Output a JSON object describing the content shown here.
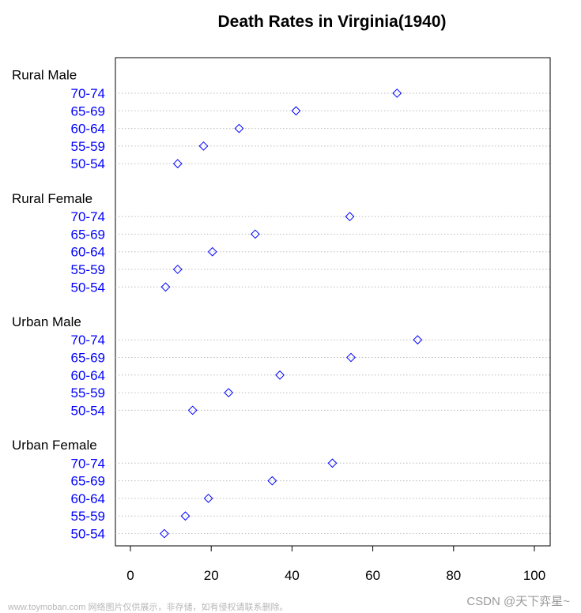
{
  "chart_data": {
    "type": "dotchart",
    "title": "Death Rates in Virginia(1940)",
    "xlim": [
      0,
      100
    ],
    "x_ticks": [
      0,
      20,
      40,
      60,
      80,
      100
    ],
    "grid": "dotted horizontal",
    "point_color": "#0000ff",
    "label_color": "#0000ff",
    "groups": [
      {
        "name": "Rural Male",
        "categories": [
          "70-74",
          "65-69",
          "60-64",
          "55-59",
          "50-54"
        ],
        "values": [
          66.0,
          41.0,
          26.9,
          18.1,
          11.7
        ]
      },
      {
        "name": "Rural Female",
        "categories": [
          "70-74",
          "65-69",
          "60-64",
          "55-59",
          "50-54"
        ],
        "values": [
          54.3,
          30.9,
          20.3,
          11.7,
          8.7
        ]
      },
      {
        "name": "Urban Male",
        "categories": [
          "70-74",
          "65-69",
          "60-64",
          "55-59",
          "50-54"
        ],
        "values": [
          71.1,
          54.6,
          37.0,
          24.3,
          15.4
        ]
      },
      {
        "name": "Urban Female",
        "categories": [
          "70-74",
          "65-69",
          "60-64",
          "55-59",
          "50-54"
        ],
        "values": [
          50.0,
          35.1,
          19.3,
          13.6,
          8.4
        ]
      }
    ]
  },
  "watermark": {
    "left": "www.toymoban.com 网络图片仅供展示，非存储，如有侵权请联系删除。",
    "right": "CSDN @天下弈星~"
  }
}
